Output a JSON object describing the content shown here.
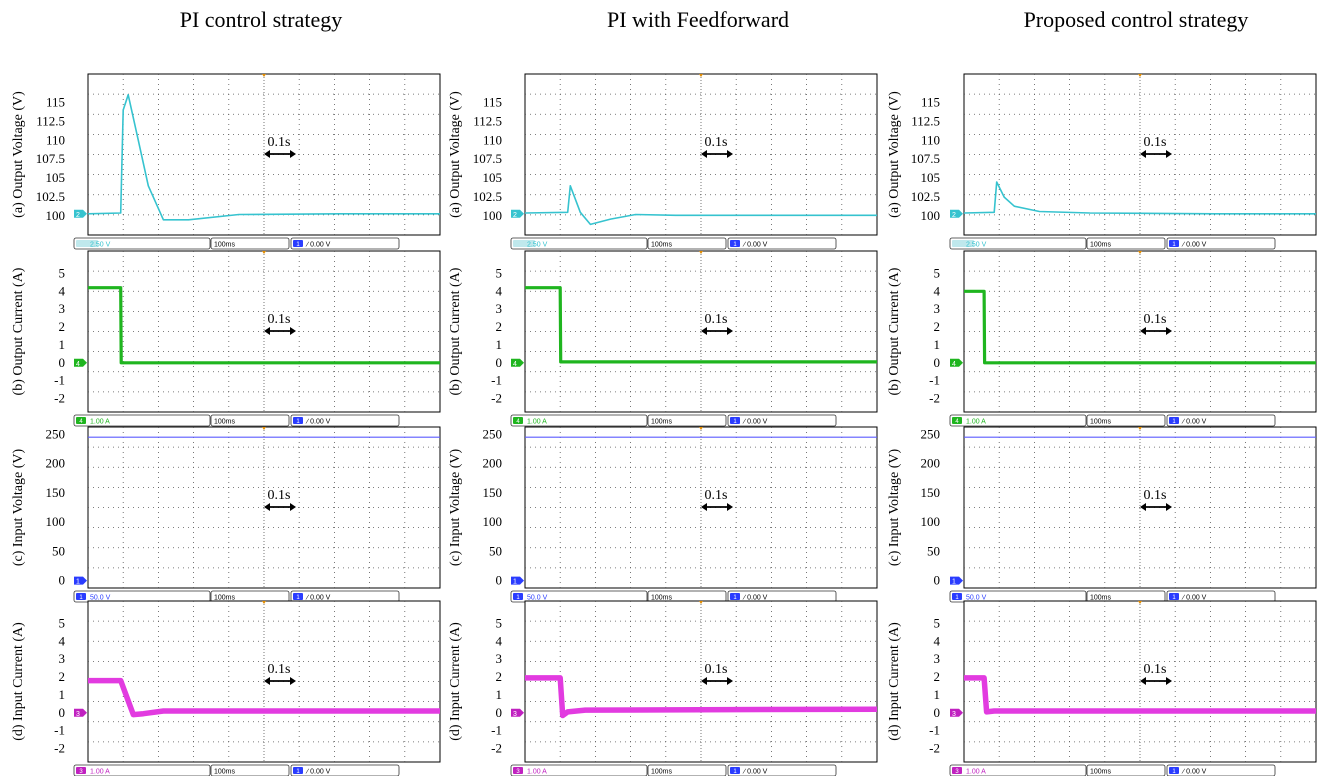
{
  "columns": [
    {
      "title": "PI control strategy"
    },
    {
      "title": "PI with Feedforward"
    },
    {
      "title": "Proposed control strategy"
    }
  ],
  "annotation": "0.1s",
  "colors": {
    "ch2": "#36c3cf",
    "ch4": "#1fb51f",
    "ch1": "#5b5bff",
    "ch3": "#e23be0",
    "grid": "#555555",
    "frame": "#000000"
  },
  "rows": [
    {
      "ylabel": "(a) Output Voltage (V)",
      "ticks": [
        "115",
        "112.5",
        "110",
        "107.5",
        "105",
        "102.5",
        "100"
      ],
      "marker": "2",
      "status": [
        "2.50 V",
        "100ms",
        "1",
        "0.00 V"
      ],
      "marker_color": "#36c3cf"
    },
    {
      "ylabel": "(b) Output Current (A)",
      "ticks": [
        "5",
        "4",
        "3",
        "2",
        "1",
        "0",
        "-1",
        "-2"
      ],
      "marker": "4",
      "status": [
        "4",
        "1.00 A",
        "100ms",
        "1",
        "0.00 V"
      ],
      "marker_color": "#1fb51f"
    },
    {
      "ylabel": "(c) Input Voltage (V)",
      "ticks": [
        "250",
        "200",
        "150",
        "100",
        "50",
        "0"
      ],
      "marker": "1",
      "status": [
        "1",
        "50.0 V",
        "100ms",
        "1",
        "0.00 V"
      ],
      "marker_color": "#2a3cff"
    },
    {
      "ylabel": "(d) Input Current (A)",
      "ticks": [
        "5",
        "4",
        "3",
        "2",
        "1",
        "0",
        "-1",
        "-2"
      ],
      "marker": "3",
      "status": [
        "3",
        "1.00 A",
        "100ms",
        "1",
        "0.00 V"
      ],
      "marker_color": "#c021c0"
    }
  ],
  "chart_data": [
    {
      "type": "line",
      "panel": "PI control strategy / (a) Output Voltage (V)",
      "xlabel": "",
      "ylabel": "(a) Output Voltage (V)",
      "ylim": [
        97.5,
        118.75
      ],
      "x": [
        0,
        0.065,
        0.07,
        0.08,
        0.1,
        0.12,
        0.15,
        0.2,
        0.3,
        0.5,
        0.7
      ],
      "series": [
        {
          "values": [
            100.3,
            100.4,
            114,
            116,
            110,
            104,
            99.5,
            99.5,
            100.2,
            100.3,
            100.3
          ]
        }
      ]
    },
    {
      "type": "line",
      "panel": "PI with Feedforward / (a) Output Voltage (V)",
      "xlabel": "",
      "ylabel": "(a) Output Voltage (V)",
      "ylim": [
        97.5,
        118.75
      ],
      "x": [
        0,
        0.085,
        0.09,
        0.11,
        0.13,
        0.17,
        0.22,
        0.3,
        0.5,
        0.7
      ],
      "series": [
        {
          "values": [
            100.4,
            100.5,
            104,
            100.5,
            98.9,
            99.6,
            100.2,
            100.1,
            100.1,
            100.1
          ]
        }
      ]
    },
    {
      "type": "line",
      "panel": "Proposed control strategy / (a) Output Voltage (V)",
      "xlabel": "",
      "ylabel": "(a) Output Voltage (V)",
      "ylim": [
        97.5,
        118.75
      ],
      "x": [
        0,
        0.06,
        0.065,
        0.08,
        0.1,
        0.15,
        0.25,
        0.5,
        0.7
      ],
      "series": [
        {
          "values": [
            100.4,
            100.5,
            104.5,
            102.5,
            101.3,
            100.6,
            100.4,
            100.3,
            100.3
          ]
        }
      ]
    },
    {
      "type": "line",
      "panel": "PI control strategy / (b) Output Current (A)",
      "xlabel": "",
      "ylabel": "(b) Output Current (A)",
      "ylim": [
        -2.75,
        6.25
      ],
      "x": [
        0,
        0.065,
        0.066,
        0.7
      ],
      "series": [
        {
          "values": [
            4.2,
            4.2,
            0,
            0
          ]
        }
      ]
    },
    {
      "type": "line",
      "panel": "PI with Feedforward / (b) Output Current (A)",
      "xlabel": "",
      "ylabel": "(b) Output Current (A)",
      "ylim": [
        -2.75,
        6.25
      ],
      "x": [
        0,
        0.07,
        0.071,
        0.7
      ],
      "series": [
        {
          "values": [
            4.2,
            4.2,
            0.05,
            0.05
          ]
        }
      ]
    },
    {
      "type": "line",
      "panel": "Proposed control strategy / (b) Output Current (A)",
      "xlabel": "",
      "ylabel": "(b) Output Current (A)",
      "ylim": [
        -2.75,
        6.25
      ],
      "x": [
        0,
        0.04,
        0.041,
        0.7
      ],
      "series": [
        {
          "values": [
            4.0,
            4.0,
            0,
            0
          ]
        }
      ]
    },
    {
      "type": "line",
      "panel": "PI control strategy / (c) Input Voltage (V)",
      "xlabel": "",
      "ylabel": "(c) Input Voltage (V)",
      "ylim": [
        -12.5,
        262.5
      ],
      "x": [
        0,
        0.7
      ],
      "series": [
        {
          "values": [
            245,
            245
          ]
        }
      ]
    },
    {
      "type": "line",
      "panel": "PI with Feedforward / (c) Input Voltage (V)",
      "xlabel": "",
      "ylabel": "(c) Input Voltage (V)",
      "ylim": [
        -12.5,
        262.5
      ],
      "x": [
        0,
        0.7
      ],
      "series": [
        {
          "values": [
            245,
            245
          ]
        }
      ]
    },
    {
      "type": "line",
      "panel": "Proposed control strategy / (c) Input Voltage (V)",
      "xlabel": "",
      "ylabel": "(c) Input Voltage (V)",
      "ylim": [
        -12.5,
        262.5
      ],
      "x": [
        0,
        0.7
      ],
      "series": [
        {
          "values": [
            245,
            245
          ]
        }
      ]
    },
    {
      "type": "line",
      "panel": "PI control strategy / (d) Input Current (A)",
      "xlabel": "",
      "ylabel": "(d) Input Current (A)",
      "ylim": [
        -2.75,
        6.25
      ],
      "x": [
        0,
        0.065,
        0.09,
        0.11,
        0.15,
        0.3,
        0.7
      ],
      "series": [
        {
          "values": [
            1.8,
            1.8,
            -0.1,
            -0.05,
            0.1,
            0.1,
            0.1
          ]
        }
      ]
    },
    {
      "type": "line",
      "panel": "PI with Feedforward / (d) Input Current (A)",
      "xlabel": "",
      "ylabel": "(d) Input Current (A)",
      "ylim": [
        -2.75,
        6.25
      ],
      "x": [
        0,
        0.07,
        0.075,
        0.085,
        0.12,
        0.7
      ],
      "series": [
        {
          "values": [
            1.95,
            1.95,
            -0.15,
            0.05,
            0.15,
            0.2
          ]
        }
      ]
    },
    {
      "type": "line",
      "panel": "Proposed control strategy / (d) Input Current (A)",
      "xlabel": "",
      "ylabel": "(d) Input Current (A)",
      "ylim": [
        -2.75,
        6.25
      ],
      "x": [
        0,
        0.04,
        0.045,
        0.06,
        0.7
      ],
      "series": [
        {
          "values": [
            1.95,
            1.95,
            0.05,
            0.1,
            0.1
          ]
        }
      ]
    }
  ]
}
